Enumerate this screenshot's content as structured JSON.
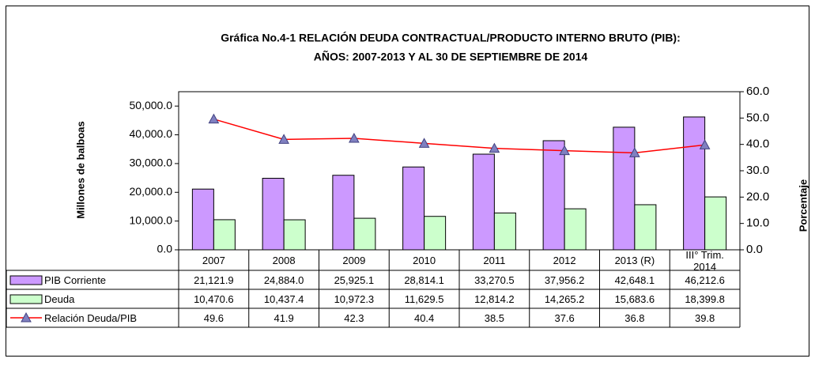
{
  "chart_data": {
    "type": "bar_line_table",
    "title": "Gráfica No.4-1  RELACIÓN DEUDA CONTRACTUAL/PRODUCTO INTERNO BRUTO (PIB):",
    "subtitle": "AÑOS: 2007-2013 Y AL 30 DE SEPTIEMBRE DE 2014",
    "y_label": "Millones de balboas",
    "y2_label": "Porcentaje",
    "categories": [
      "2007",
      "2008",
      "2009",
      "2010",
      "2011",
      "2012",
      "2013 (R)",
      "III° Trim. 2014"
    ],
    "series": [
      {
        "name": "PIB Corriente",
        "type": "bar",
        "color": "#cc99ff",
        "values": [
          21121.9,
          24884.0,
          25925.1,
          28814.1,
          33270.5,
          37956.2,
          42648.1,
          46212.6
        ],
        "value_labels": [
          "21,121.9",
          "24,884.0",
          "25,925.1",
          "28,814.1",
          "33,270.5",
          "37,956.2",
          "42,648.1",
          "46,212.6"
        ]
      },
      {
        "name": "Deuda",
        "type": "bar",
        "color": "#ccffcc",
        "values": [
          10470.6,
          10437.4,
          10972.3,
          11629.5,
          12814.2,
          14265.2,
          15683.6,
          18399.8
        ],
        "value_labels": [
          "10,470.6",
          "10,437.4",
          "10,972.3",
          "11,629.5",
          "12,814.2",
          "14,265.2",
          "15,683.6",
          "18,399.8"
        ]
      },
      {
        "name": "Relación Deuda/PIB",
        "type": "line",
        "axis": "y2",
        "color": "#ff0000",
        "marker_color": "#8080c0",
        "values": [
          49.6,
          41.9,
          42.3,
          40.4,
          38.5,
          37.6,
          36.8,
          39.8
        ]
      }
    ],
    "ylim": [
      0,
      55000
    ],
    "yticks": [
      {
        "value": 0,
        "label": "0.0"
      },
      {
        "value": 10000,
        "label": "10,000.0"
      },
      {
        "value": 20000,
        "label": "20,000.0"
      },
      {
        "value": 30000,
        "label": "30,000.0"
      },
      {
        "value": 40000,
        "label": "40,000.0"
      },
      {
        "value": 50000,
        "label": "50,000.0"
      }
    ],
    "y2lim": [
      0,
      60
    ],
    "y2ticks": [
      {
        "value": 0,
        "label": "0.0"
      },
      {
        "value": 10,
        "label": "10.0"
      },
      {
        "value": 20,
        "label": "20.0"
      },
      {
        "value": 30,
        "label": "30.0"
      },
      {
        "value": 40,
        "label": "40.0"
      },
      {
        "value": 50,
        "label": "50.0"
      },
      {
        "value": 60,
        "label": "60.0"
      }
    ]
  }
}
